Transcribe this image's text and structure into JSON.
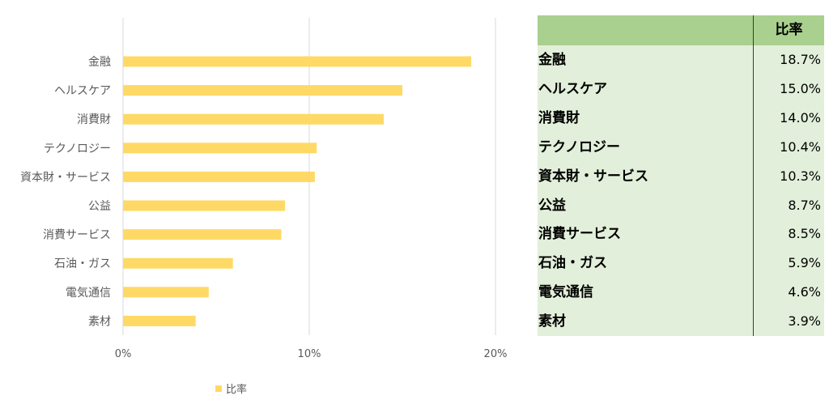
{
  "chart_data": {
    "type": "bar",
    "orientation": "horizontal",
    "categories": [
      "金融",
      "ヘルスケア",
      "消費財",
      "テクノロジー",
      "資本財・サービス",
      "公益",
      "消費サービス",
      "石油・ガス",
      "電気通信",
      "素材"
    ],
    "series": [
      {
        "name": "比率",
        "values": [
          18.7,
          15.0,
          14.0,
          10.4,
          10.3,
          8.7,
          8.5,
          5.9,
          4.6,
          3.9
        ]
      }
    ],
    "xlim": [
      0,
      20
    ],
    "x_ticks": [
      "0%",
      "10%",
      "20%"
    ],
    "grid": "vertical",
    "legend_position": "bottom",
    "bar_color": "#ffd966"
  },
  "table": {
    "header": "比率",
    "rows": [
      {
        "name": "金融",
        "value": "18.7%"
      },
      {
        "name": "ヘルスケア",
        "value": "15.0%"
      },
      {
        "name": "消費財",
        "value": "14.0%"
      },
      {
        "name": "テクノロジー",
        "value": "10.4%"
      },
      {
        "name": "資本財・サービス",
        "value": "10.3%"
      },
      {
        "name": "公益",
        "value": "8.7%"
      },
      {
        "name": "消費サービス",
        "value": "8.5%"
      },
      {
        "name": "石油・ガス",
        "value": "5.9%"
      },
      {
        "name": "電気通信",
        "value": "4.6%"
      },
      {
        "name": "素材",
        "value": "3.9%"
      }
    ],
    "colors": {
      "header_bg": "#a9d08e",
      "body_bg": "#e2efda"
    }
  }
}
